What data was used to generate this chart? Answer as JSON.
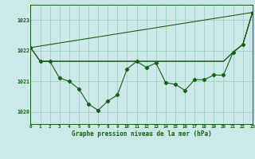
{
  "title": "Graphe pression niveau de la mer (hPa)",
  "background_color": "#cce8e8",
  "grid_color": "#99ccbb",
  "line_color": "#1a5c1a",
  "xlim": [
    0,
    23
  ],
  "ylim": [
    1019.6,
    1023.5
  ],
  "yticks": [
    1020,
    1021,
    1022,
    1023
  ],
  "xticks": [
    0,
    1,
    2,
    3,
    4,
    5,
    6,
    7,
    8,
    9,
    10,
    11,
    12,
    13,
    14,
    15,
    16,
    17,
    18,
    19,
    20,
    21,
    22,
    23
  ],
  "series_zigzag": {
    "x": [
      0,
      1,
      2,
      3,
      4,
      5,
      6,
      7,
      8,
      9,
      10,
      11,
      12,
      13,
      14,
      15,
      16,
      17,
      18,
      19,
      20,
      21,
      22,
      23
    ],
    "y": [
      1022.1,
      1021.65,
      1021.65,
      1021.1,
      1021.0,
      1020.75,
      1020.25,
      1020.05,
      1020.35,
      1020.55,
      1021.4,
      1021.65,
      1021.45,
      1021.6,
      1020.95,
      1020.9,
      1020.7,
      1021.05,
      1021.05,
      1021.2,
      1021.2,
      1021.95,
      1022.2,
      1023.25
    ]
  },
  "series_flat1": {
    "x": [
      0,
      1,
      2,
      19,
      20,
      21,
      22,
      23
    ],
    "y": [
      1022.1,
      1021.65,
      1021.65,
      1021.65,
      1021.65,
      1021.95,
      1022.2,
      1023.25
    ]
  },
  "series_flat2": {
    "x": [
      1,
      2,
      19,
      20,
      21,
      22,
      23
    ],
    "y": [
      1021.65,
      1021.65,
      1021.65,
      1021.65,
      1021.95,
      1022.2,
      1023.25
    ]
  },
  "series_diagonal": {
    "x": [
      0,
      23
    ],
    "y": [
      1022.1,
      1023.25
    ]
  }
}
